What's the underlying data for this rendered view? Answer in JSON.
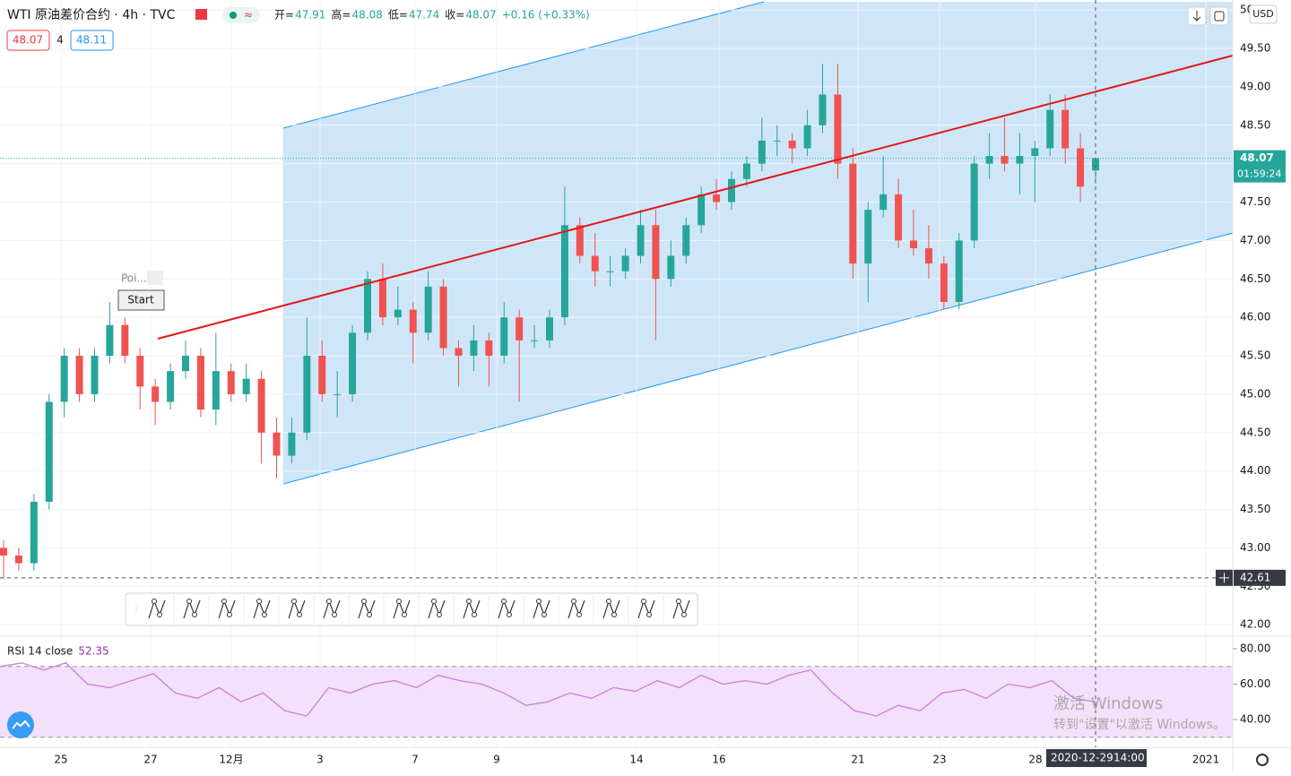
{
  "header": {
    "symbol": "WTI 原油差价合约 · 4h · TVC",
    "ohlc": [
      {
        "label": "开=",
        "value": "47.91"
      },
      {
        "label": "高=",
        "value": "48.08"
      },
      {
        "label": "低=",
        "value": "47.74"
      },
      {
        "label": "收=",
        "value": "48.07"
      }
    ],
    "change": "+0.16 (+0.33%)",
    "bid": "48.07",
    "spread": "4",
    "ask": "48.11"
  },
  "price_axis": {
    "currency": "USD",
    "ylim": [
      41.85,
      50.13
    ],
    "ticks": [
      {
        "value": 42,
        "label": "42.00"
      },
      {
        "value": 42.5,
        "label": "42.50"
      },
      {
        "value": 43,
        "label": "43.00"
      },
      {
        "value": 43.5,
        "label": "43.50"
      },
      {
        "value": 44,
        "label": "44.00"
      },
      {
        "value": 44.5,
        "label": "44.50"
      },
      {
        "value": 45,
        "label": "45.00"
      },
      {
        "value": 45.5,
        "label": "45.50"
      },
      {
        "value": 46,
        "label": "46.00"
      },
      {
        "value": 46.5,
        "label": "46.50"
      },
      {
        "value": 47,
        "label": "47.00"
      },
      {
        "value": 47.5,
        "label": "47.50"
      },
      {
        "value": 48,
        "label": "48.00"
      },
      {
        "value": 48.5,
        "label": "48.50"
      },
      {
        "value": 49,
        "label": "49.00"
      },
      {
        "value": 49.5,
        "label": "49.50"
      },
      {
        "value": 50,
        "label": "50.00"
      }
    ],
    "last": {
      "value": 48.07,
      "label": "48.07"
    },
    "countdown": "01:59:24",
    "crosshair": {
      "value": 42.61,
      "label": "42.61"
    }
  },
  "x_axis": {
    "labels": [
      "25",
      "27",
      "12月",
      "3",
      "7",
      "9",
      "14",
      "16",
      "21",
      "23",
      "28",
      "2021"
    ],
    "crosshair_date": "2020-12-29",
    "crosshair_time": "14:00"
  },
  "candles": [
    [
      43.0,
      43.1,
      42.6,
      42.9
    ],
    [
      42.9,
      43.0,
      42.7,
      42.8
    ],
    [
      42.8,
      43.7,
      42.7,
      43.6
    ],
    [
      43.6,
      45.0,
      43.5,
      44.9
    ],
    [
      44.9,
      45.6,
      44.7,
      45.5
    ],
    [
      45.5,
      45.6,
      44.9,
      45.0
    ],
    [
      45.0,
      45.6,
      44.9,
      45.5
    ],
    [
      45.5,
      46.2,
      45.4,
      45.9
    ],
    [
      45.9,
      46.0,
      45.4,
      45.5
    ],
    [
      45.5,
      45.6,
      44.8,
      45.1
    ],
    [
      45.1,
      45.2,
      44.6,
      44.9
    ],
    [
      44.9,
      45.4,
      44.8,
      45.3
    ],
    [
      45.3,
      45.7,
      45.2,
      45.5
    ],
    [
      45.5,
      45.6,
      44.7,
      44.8
    ],
    [
      44.8,
      45.8,
      44.6,
      45.3
    ],
    [
      45.3,
      45.4,
      44.9,
      45.0
    ],
    [
      45.0,
      45.4,
      44.9,
      45.2
    ],
    [
      45.2,
      45.3,
      44.1,
      44.5
    ],
    [
      44.5,
      44.7,
      43.9,
      44.2
    ],
    [
      44.2,
      44.7,
      44.1,
      44.5
    ],
    [
      44.5,
      46.0,
      44.4,
      45.5
    ],
    [
      45.5,
      45.7,
      44.9,
      45.0
    ],
    [
      45.0,
      45.3,
      44.7,
      45.0
    ],
    [
      45.0,
      45.9,
      44.9,
      45.8
    ],
    [
      45.8,
      46.6,
      45.7,
      46.5
    ],
    [
      46.5,
      46.7,
      45.9,
      46.0
    ],
    [
      46.0,
      46.4,
      45.9,
      46.1
    ],
    [
      46.1,
      46.2,
      45.4,
      45.8
    ],
    [
      45.8,
      46.6,
      45.7,
      46.4
    ],
    [
      46.4,
      46.5,
      45.5,
      45.6
    ],
    [
      45.6,
      45.7,
      45.1,
      45.5
    ],
    [
      45.5,
      45.9,
      45.3,
      45.7
    ],
    [
      45.7,
      45.8,
      45.1,
      45.5
    ],
    [
      45.5,
      46.2,
      45.4,
      46.0
    ],
    [
      46.0,
      46.1,
      44.9,
      45.7
    ],
    [
      45.7,
      45.9,
      45.6,
      45.7
    ],
    [
      45.7,
      46.1,
      45.6,
      46.0
    ],
    [
      46.0,
      47.7,
      45.9,
      47.2
    ],
    [
      47.2,
      47.3,
      46.7,
      46.8
    ],
    [
      46.8,
      47.1,
      46.4,
      46.6
    ],
    [
      46.6,
      46.8,
      46.4,
      46.6
    ],
    [
      46.6,
      46.9,
      46.5,
      46.8
    ],
    [
      46.8,
      47.4,
      46.7,
      47.2
    ],
    [
      47.2,
      47.4,
      45.7,
      46.5
    ],
    [
      46.5,
      47.0,
      46.4,
      46.8
    ],
    [
      46.8,
      47.3,
      46.7,
      47.2
    ],
    [
      47.2,
      47.7,
      47.1,
      47.6
    ],
    [
      47.6,
      47.8,
      47.4,
      47.5
    ],
    [
      47.5,
      47.9,
      47.4,
      47.8
    ],
    [
      47.8,
      48.1,
      47.7,
      48.0
    ],
    [
      48.0,
      48.6,
      47.9,
      48.3
    ],
    [
      48.3,
      48.5,
      48.1,
      48.3
    ],
    [
      48.3,
      48.4,
      48.0,
      48.2
    ],
    [
      48.2,
      48.7,
      48.1,
      48.5
    ],
    [
      48.5,
      49.3,
      48.4,
      48.9
    ],
    [
      48.9,
      49.3,
      47.8,
      48.0
    ],
    [
      48.0,
      48.2,
      46.5,
      46.7
    ],
    [
      46.7,
      47.5,
      46.2,
      47.4
    ],
    [
      47.4,
      48.1,
      47.3,
      47.6
    ],
    [
      47.6,
      47.8,
      46.9,
      47.0
    ],
    [
      47.0,
      47.4,
      46.8,
      46.9
    ],
    [
      46.9,
      47.2,
      46.5,
      46.7
    ],
    [
      46.7,
      46.8,
      46.1,
      46.2
    ],
    [
      46.2,
      47.1,
      46.1,
      47.0
    ],
    [
      47.0,
      48.1,
      46.9,
      48.0
    ],
    [
      48.0,
      48.4,
      47.8,
      48.1
    ],
    [
      48.1,
      48.6,
      47.9,
      48.0
    ],
    [
      48.0,
      48.4,
      47.6,
      48.1
    ],
    [
      48.1,
      48.3,
      47.5,
      48.2
    ],
    [
      48.2,
      48.9,
      48.1,
      48.7
    ],
    [
      48.7,
      48.9,
      48.0,
      48.2
    ],
    [
      48.2,
      48.4,
      47.5,
      47.7
    ],
    [
      47.91,
      48.08,
      47.74,
      48.07
    ]
  ],
  "rsi": {
    "title": "RSI 14 close",
    "current": "52.35",
    "ylim": [
      26.3,
      86.1
    ],
    "ticks": [
      {
        "value": 80,
        "label": "80.00"
      },
      {
        "value": 60,
        "label": "60.00"
      },
      {
        "value": 40,
        "label": "40.00"
      }
    ],
    "bands": [
      70,
      30
    ],
    "values": [
      70,
      72,
      68,
      72,
      60,
      58,
      62,
      66,
      55,
      52,
      58,
      50,
      55,
      45,
      42,
      58,
      55,
      60,
      62,
      58,
      65,
      62,
      60,
      55,
      48,
      50,
      55,
      52,
      58,
      56,
      62,
      58,
      65,
      60,
      62,
      60,
      65,
      68,
      55,
      45,
      42,
      48,
      45,
      55,
      57,
      52,
      60,
      58,
      62,
      52,
      50
    ]
  },
  "tool_popup": {
    "title": "Poi...",
    "button": "Start"
  },
  "watermark": {
    "line1": "激活 Windows",
    "line2": "转到\"设置\"以激活 Windows。"
  }
}
